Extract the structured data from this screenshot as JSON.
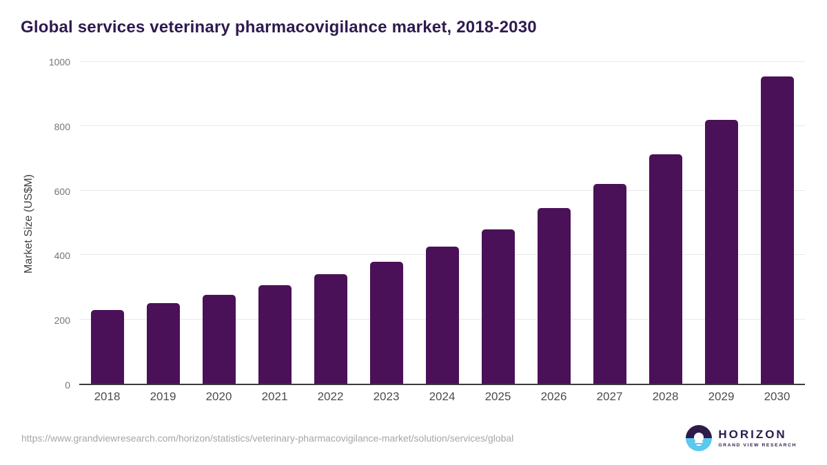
{
  "header": {
    "title": "Global services veterinary pharmacovigilance market, 2018-2030"
  },
  "chart_data": {
    "type": "bar",
    "title": "Global services veterinary pharmacovigilance market, 2018-2030",
    "categories": [
      "2018",
      "2019",
      "2020",
      "2021",
      "2022",
      "2023",
      "2024",
      "2025",
      "2026",
      "2027",
      "2028",
      "2029",
      "2030"
    ],
    "values": [
      230,
      250,
      276,
      307,
      341,
      380,
      427,
      480,
      546,
      620,
      713,
      820,
      954
    ],
    "xlabel": "",
    "ylabel": "Market Size (US$M)",
    "ylim": [
      0,
      1000
    ],
    "yticks": [
      0,
      200,
      400,
      600,
      800,
      1000
    ],
    "grid": true,
    "legend": false,
    "bar_color": "#4a1158"
  },
  "footer": {
    "source_url": "https://www.grandviewresearch.com/horizon/statistics/veterinary-pharmacovigilance-market/solution/services/global",
    "logo": {
      "name": "HORIZON",
      "subtitle": "GRAND VIEW RESEARCH",
      "icon": "sun-over-horizon-icon"
    }
  },
  "colors": {
    "background": "#ffffff",
    "bar": "#4a1158",
    "title": "#2e1a4f",
    "grid": "#e8e8e8",
    "axis_line": "#3a3a3a",
    "x_tick": "#4c4c4c",
    "y_tick": "#757575",
    "axis_title": "#3f3f3f",
    "url_text": "#a6a6a6",
    "logo_dark": "#2d1b4a",
    "logo_blue": "#5bc8f0"
  }
}
